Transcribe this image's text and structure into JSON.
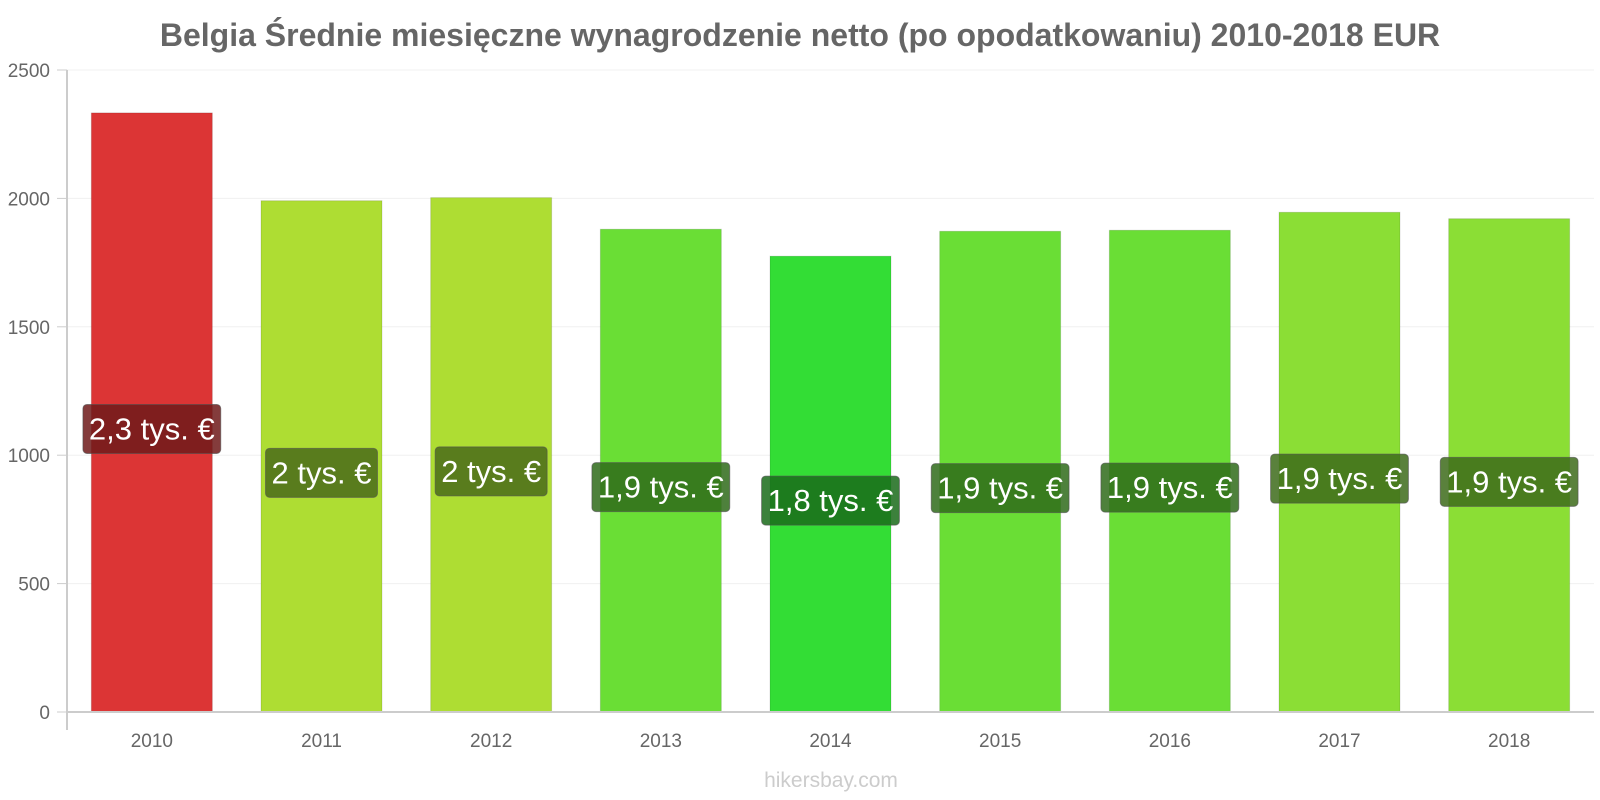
{
  "chart_data": {
    "type": "bar",
    "title": "Belgia Średnie miesięczne wynagrodzenie netto (po opodatkowaniu) 2010-2018 EUR",
    "xlabel": "",
    "ylabel": "",
    "categories": [
      "2010",
      "2011",
      "2012",
      "2013",
      "2014",
      "2015",
      "2016",
      "2017",
      "2018"
    ],
    "values": [
      2333,
      1991,
      2003,
      1880,
      1775,
      1872,
      1876,
      1946,
      1921
    ],
    "data_labels": [
      "2,3 tys. €",
      "2 tys. €",
      "2 tys. €",
      "1,9 tys. €",
      "1,8 tys. €",
      "1,9 tys. €",
      "1,9 tys. €",
      "1,9 tys. €",
      "1,9 tys. €"
    ],
    "bar_colors": [
      "#dc3535",
      "#aedd33",
      "#aedd33",
      "#6ade35",
      "#33dd35",
      "#6ade35",
      "#6ade35",
      "#8bde35",
      "#8bde35"
    ],
    "label_bg_colors": [
      "#6e1a1a",
      "#4a6b1a",
      "#4a6b1a",
      "#2f6b1a",
      "#1a6b1a",
      "#2f6b1a",
      "#2f6b1a",
      "#3d6b1a",
      "#3d6b1a"
    ],
    "ylim": [
      0,
      2500
    ],
    "yticks": [
      0,
      500,
      1000,
      1500,
      2000,
      2500
    ],
    "grid": true,
    "legend": "none"
  },
  "footer": {
    "watermark": "hikersbay.com"
  }
}
